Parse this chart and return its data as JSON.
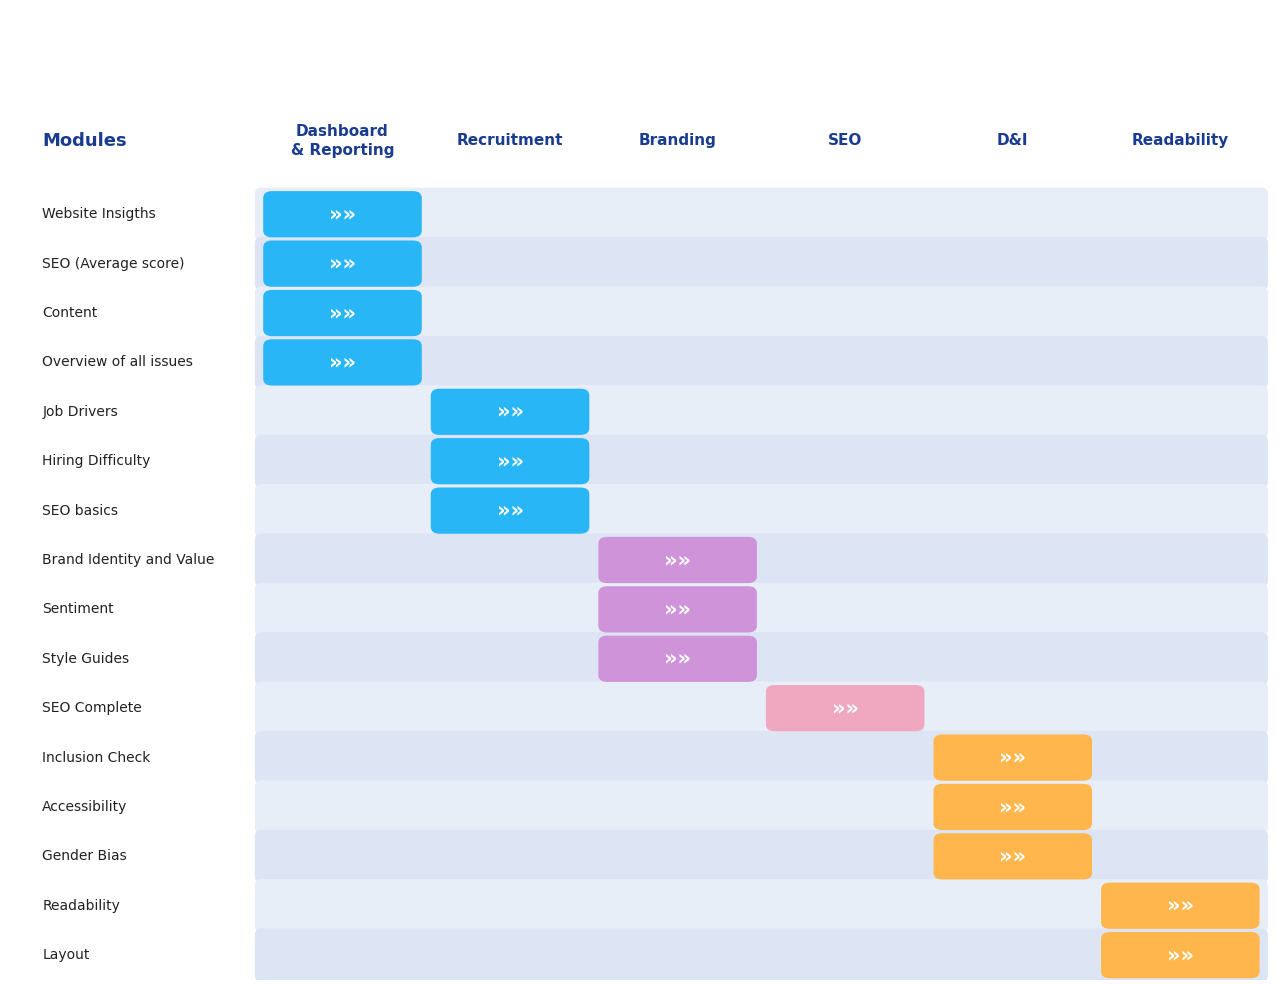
{
  "title_modules": "Modules",
  "columns": [
    "Dashboard\n& Reporting",
    "Recruitment",
    "Branding",
    "SEO",
    "D&I",
    "Readability"
  ],
  "rows": [
    "Website Insigths",
    "SEO (Average score)",
    "Content",
    "Overview of all issues",
    "Job Drivers",
    "Hiring Difficulty",
    "SEO basics",
    "Brand Identity and Value",
    "Sentiment",
    "Style Guides",
    "SEO Complete",
    "Inclusion Check",
    "Accessibility",
    "Gender Bias",
    "Readability",
    "Layout"
  ],
  "cells": [
    [
      0,
      -1,
      -1,
      -1,
      -1,
      -1
    ],
    [
      0,
      -1,
      -1,
      -1,
      -1,
      -1
    ],
    [
      0,
      -1,
      -1,
      -1,
      -1,
      -1
    ],
    [
      0,
      -1,
      -1,
      -1,
      -1,
      -1
    ],
    [
      -1,
      1,
      -1,
      -1,
      -1,
      -1
    ],
    [
      -1,
      1,
      -1,
      -1,
      -1,
      -1
    ],
    [
      -1,
      1,
      -1,
      -1,
      -1,
      -1
    ],
    [
      -1,
      -1,
      2,
      -1,
      -1,
      -1
    ],
    [
      -1,
      -1,
      2,
      -1,
      -1,
      -1
    ],
    [
      -1,
      -1,
      2,
      -1,
      -1,
      -1
    ],
    [
      -1,
      -1,
      -1,
      3,
      -1,
      -1
    ],
    [
      -1,
      -1,
      -1,
      -1,
      4,
      -1
    ],
    [
      -1,
      -1,
      -1,
      -1,
      4,
      -1
    ],
    [
      -1,
      -1,
      -1,
      -1,
      4,
      -1
    ],
    [
      -1,
      -1,
      -1,
      -1,
      -1,
      5
    ],
    [
      -1,
      -1,
      -1,
      -1,
      -1,
      5
    ]
  ],
  "colors": {
    "0": "#29B6F6",
    "1": "#29B6F6",
    "2": "#CE93D8",
    "3": "#F0A8C0",
    "4": "#FFB74D",
    "5": "#FFB74D"
  },
  "header_color": "#1A3C8F",
  "row_label_color": "#222222",
  "row_bg_even": "#E8EEF8",
  "row_bg_odd": "#DDE5F5",
  "header_bg": "#FFFFFF",
  "title_color": "#1A3C8F",
  "figsize": [
    12.81,
    9.84
  ],
  "dpi": 100
}
